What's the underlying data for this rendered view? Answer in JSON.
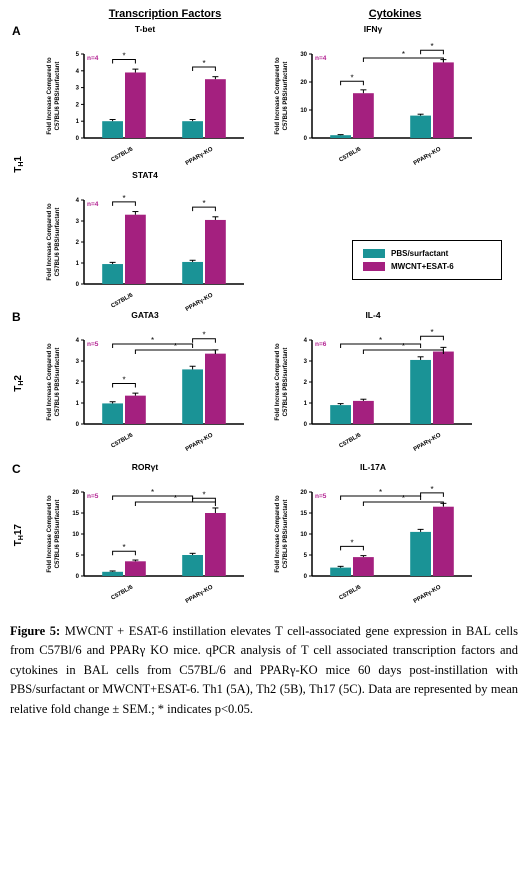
{
  "colors": {
    "pbs": "#1a9396",
    "mwcnt": "#a4207f",
    "axis": "#000000",
    "error": "#000000"
  },
  "headers": {
    "tf": "Transcription Factors",
    "cy": "Cytokines"
  },
  "legend": {
    "pbs": "PBS/surfactant",
    "mwcnt": "MWCNT+ESAT-6"
  },
  "rowlabels": {
    "A": "T",
    "Asub": "H",
    "Anum": "1",
    "B": "T",
    "Bsub": "H",
    "Bnum": "2",
    "C": "T",
    "Csub": "H",
    "Cnum": "17"
  },
  "yaxis": {
    "line1": "Fold Increase Compared to",
    "line2": "C57BL/6 PBS/surfactant"
  },
  "xticks": [
    "C57BL/6",
    "PPARγ-KO"
  ],
  "charts": {
    "tbet": {
      "title": "T-bet",
      "n": "n=4",
      "ymax": 5,
      "yticks": [
        0,
        1,
        2,
        3,
        4,
        5
      ],
      "groups": [
        {
          "pbs": 1.0,
          "pbs_e": 0.1,
          "mw": 3.9,
          "mw_e": 0.2,
          "sig": [
            "pair"
          ]
        },
        {
          "pbs": 1.0,
          "pbs_e": 0.1,
          "mw": 3.5,
          "mw_e": 0.15,
          "sig": [
            "pair"
          ]
        }
      ]
    },
    "ifng": {
      "title": "IFNγ",
      "n": "n=4",
      "ymax": 30,
      "yticks": [
        0,
        10,
        20,
        30
      ],
      "groups": [
        {
          "pbs": 1.0,
          "pbs_e": 0.2,
          "mw": 16,
          "mw_e": 1.2,
          "sig": [
            "pair"
          ]
        },
        {
          "pbs": 8.0,
          "pbs_e": 0.5,
          "mw": 27,
          "mw_e": 1.0,
          "sig": [
            "pair"
          ]
        }
      ],
      "extra_brackets": [
        {
          "from": "g1mw",
          "to": "g2mw"
        }
      ]
    },
    "stat4": {
      "title": "STAT4",
      "n": "n=4",
      "ymax": 4,
      "yticks": [
        0,
        1,
        2,
        3,
        4
      ],
      "groups": [
        {
          "pbs": 0.95,
          "pbs_e": 0.08,
          "mw": 3.3,
          "mw_e": 0.15,
          "sig": [
            "pair"
          ]
        },
        {
          "pbs": 1.05,
          "pbs_e": 0.08,
          "mw": 3.05,
          "mw_e": 0.15,
          "sig": [
            "pair"
          ]
        }
      ]
    },
    "gata3": {
      "title": "GATA3",
      "n": "n=5",
      "ymax": 4,
      "yticks": [
        0,
        1,
        2,
        3,
        4
      ],
      "groups": [
        {
          "pbs": 0.98,
          "pbs_e": 0.08,
          "mw": 1.35,
          "mw_e": 0.12,
          "sig": [
            "pair"
          ]
        },
        {
          "pbs": 2.6,
          "pbs_e": 0.15,
          "mw": 3.35,
          "mw_e": 0.18,
          "sig": [
            "pair"
          ]
        }
      ],
      "extra_brackets": [
        {
          "from": "g1pb",
          "to": "g2pb"
        },
        {
          "from": "g1mw",
          "to": "g2mw"
        }
      ]
    },
    "il4": {
      "title": "IL-4",
      "n": "n=6",
      "ymax": 4,
      "yticks": [
        0,
        1,
        2,
        3,
        4
      ],
      "groups": [
        {
          "pbs": 0.9,
          "pbs_e": 0.07,
          "mw": 1.1,
          "mw_e": 0.08
        },
        {
          "pbs": 3.05,
          "pbs_e": 0.15,
          "mw": 3.45,
          "mw_e": 0.2,
          "sig": [
            "pair"
          ]
        }
      ],
      "extra_brackets": [
        {
          "from": "g1pb",
          "to": "g2pb"
        },
        {
          "from": "g1mw",
          "to": "g2mw"
        }
      ]
    },
    "roryt": {
      "title": "RORγt",
      "n": "n=5",
      "ymax": 20,
      "yticks": [
        0,
        5,
        10,
        15,
        20
      ],
      "groups": [
        {
          "pbs": 1.0,
          "pbs_e": 0.2,
          "mw": 3.5,
          "mw_e": 0.3,
          "sig": [
            "pair"
          ]
        },
        {
          "pbs": 5.0,
          "pbs_e": 0.4,
          "mw": 15,
          "mw_e": 1.2,
          "sig": [
            "pair"
          ]
        }
      ],
      "extra_brackets": [
        {
          "from": "g1pb",
          "to": "g2pb"
        },
        {
          "from": "g1mw",
          "to": "g2mw"
        }
      ]
    },
    "il17a": {
      "title": "IL-17A",
      "n": "n=5",
      "ymax": 20,
      "yticks": [
        0,
        5,
        10,
        15,
        20
      ],
      "groups": [
        {
          "pbs": 2.0,
          "pbs_e": 0.3,
          "mw": 4.5,
          "mw_e": 0.35,
          "sig": [
            "pair"
          ]
        },
        {
          "pbs": 10.5,
          "pbs_e": 0.6,
          "mw": 16.5,
          "mw_e": 0.8,
          "sig": [
            "pair"
          ]
        }
      ],
      "extra_brackets": [
        {
          "from": "g1pb",
          "to": "g2pb"
        },
        {
          "from": "g1mw",
          "to": "g2mw"
        }
      ]
    }
  },
  "caption_bold": "Figure 5:",
  "caption_text": " MWCNT + ESAT-6 instillation elevates T cell-associated gene expression in BAL cells from C57Bl/6 and PPARγ KO mice. qPCR analysis of T cell associated transcription factors and cytokines in BAL cells from C57BL/6 and PPARγ-KO mice 60 days post-instillation with PBS/surfactant or MWCNT+ESAT-6. Th1 (5A), Th2 (5B), Th17 (5C). Data are represented by mean relative fold change ± SEM.; * indicates p<0.05."
}
